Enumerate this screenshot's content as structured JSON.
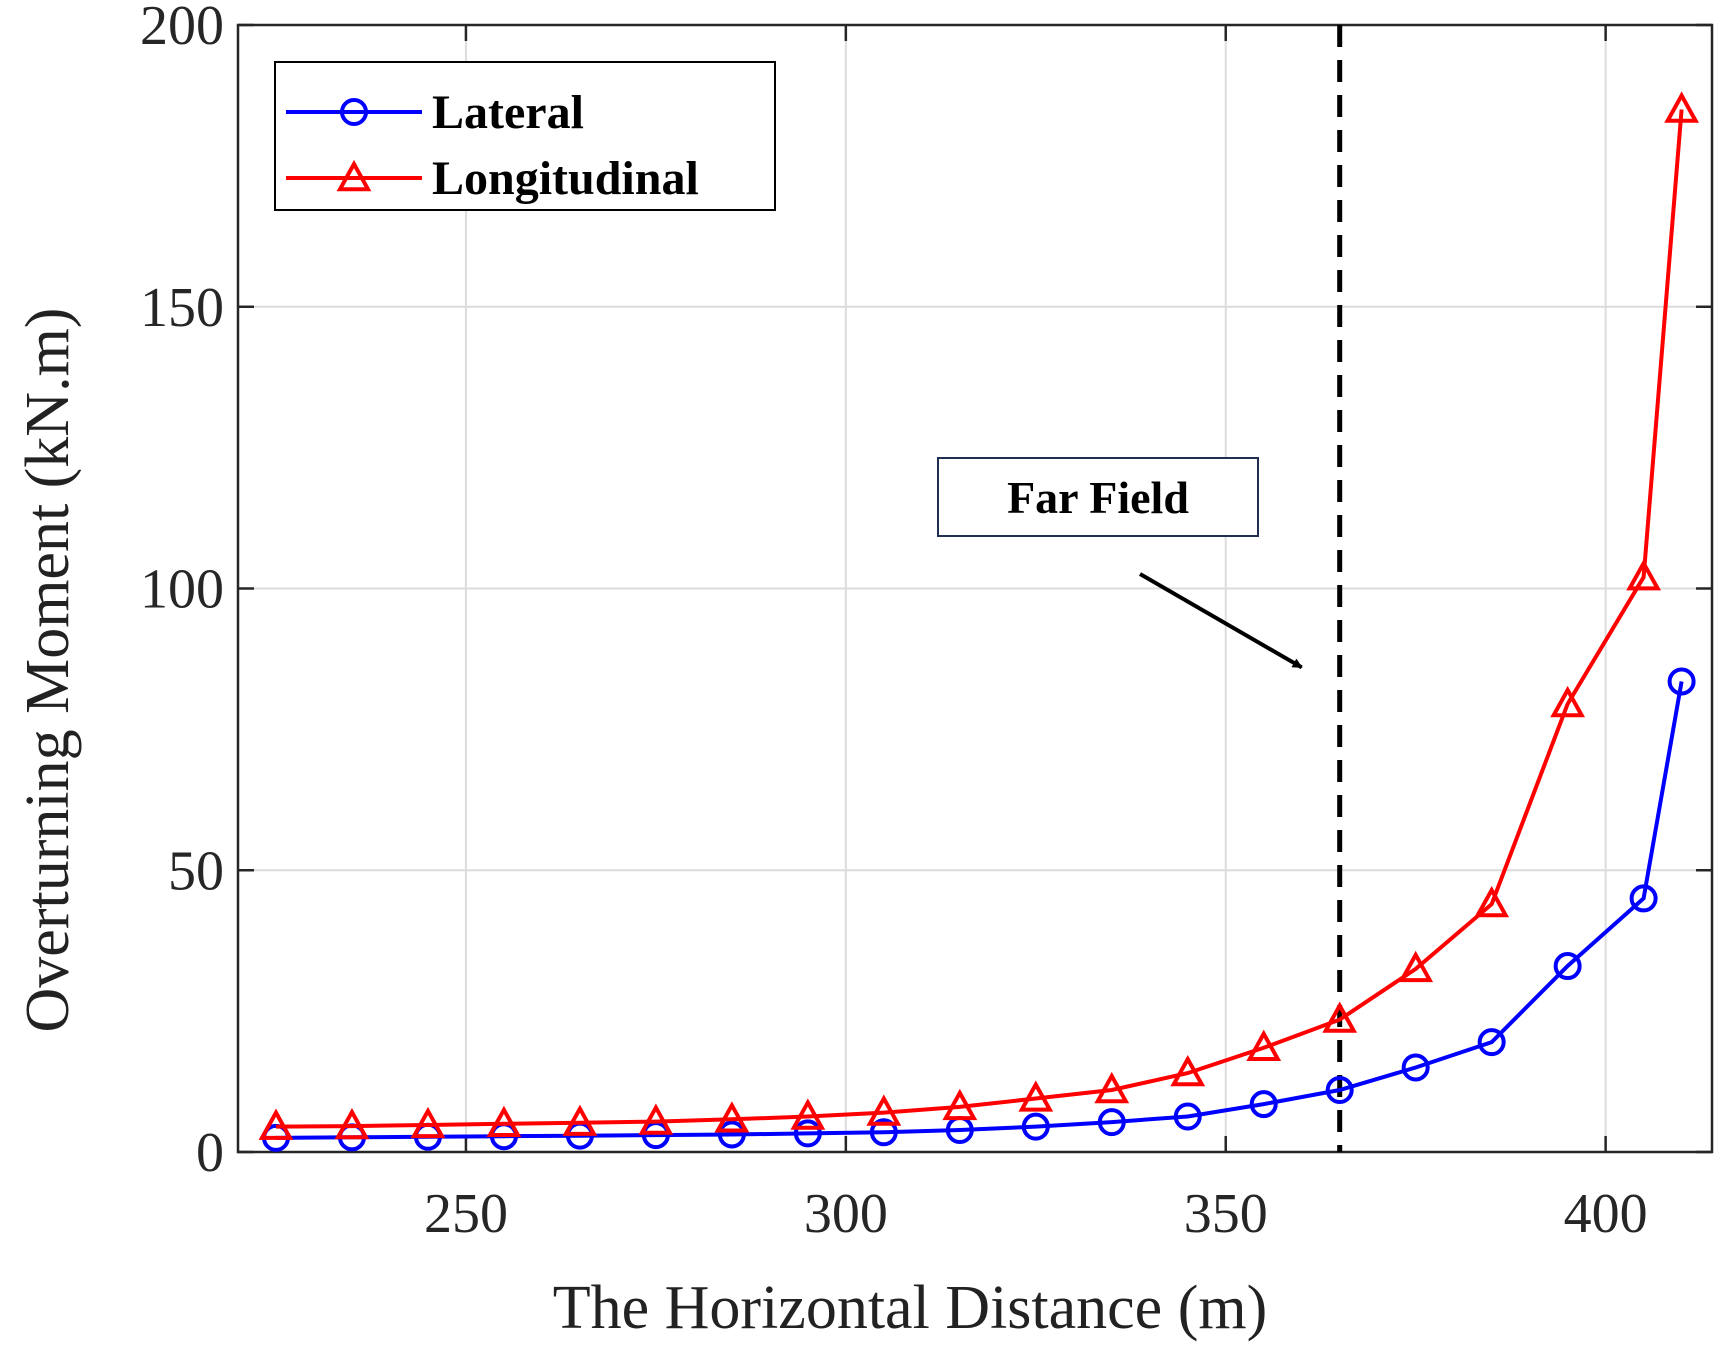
{
  "chart_data": {
    "type": "line",
    "title": "",
    "xlabel": "The Horizontal Distance (m)",
    "ylabel": "Overturning Moment (kN.m)",
    "xlim": [
      220,
      414
    ],
    "ylim": [
      0,
      200
    ],
    "xticks": [
      250,
      300,
      350,
      400
    ],
    "yticks": [
      0,
      50,
      100,
      150,
      200
    ],
    "grid": true,
    "legend_position": "top-left",
    "x": [
      225,
      235,
      245,
      255,
      265,
      275,
      285,
      295,
      305,
      315,
      325,
      335,
      345,
      355,
      365,
      375,
      385,
      395,
      405,
      410
    ],
    "series": [
      {
        "name": "Lateral",
        "color": "#0000ff",
        "marker": "circle",
        "values": [
          2.5,
          2.6,
          2.7,
          2.8,
          2.9,
          3.0,
          3.1,
          3.3,
          3.5,
          3.9,
          4.5,
          5.3,
          6.3,
          8.5,
          11.0,
          15.0,
          19.5,
          33.0,
          45.0,
          83.5
        ]
      },
      {
        "name": "Longitudinal",
        "color": "#ff0000",
        "marker": "triangle",
        "values": [
          4.5,
          4.6,
          4.8,
          5.0,
          5.2,
          5.4,
          5.8,
          6.3,
          7.0,
          8.0,
          9.5,
          11.0,
          14.0,
          18.5,
          23.5,
          32.5,
          44.0,
          79.5,
          102.0,
          185.0
        ]
      }
    ],
    "vline": {
      "x": 365,
      "style": "dashed",
      "color": "#000000"
    },
    "annotations": [
      {
        "text": "Far Field",
        "target_x": 360,
        "target_y": 86
      }
    ]
  }
}
